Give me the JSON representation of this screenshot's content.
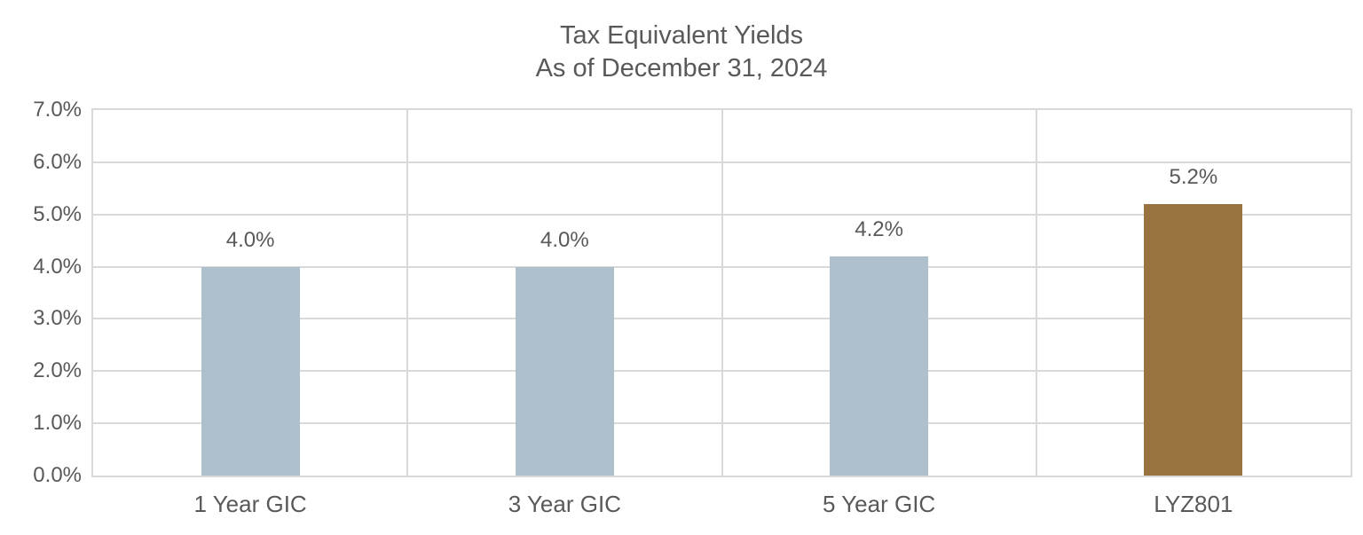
{
  "chart_data": {
    "type": "bar",
    "title": "Tax Equivalent Yields",
    "subtitle": "As of December 31, 2024",
    "categories": [
      "1 Year GIC",
      "3 Year GIC",
      "5 Year GIC",
      "LYZ801"
    ],
    "values": [
      4.0,
      4.0,
      4.2,
      5.2
    ],
    "data_labels": [
      "4.0%",
      "4.0%",
      "4.2%",
      "5.2%"
    ],
    "bar_colors": [
      "#AFC0CD",
      "#AFC0CD",
      "#AFC0CD",
      "#987240"
    ],
    "xlabel": "",
    "ylabel": "",
    "ylim": [
      0,
      7
    ],
    "ytick_step": 1,
    "ytick_labels": [
      "0.0%",
      "1.0%",
      "2.0%",
      "3.0%",
      "4.0%",
      "5.0%",
      "6.0%",
      "7.0%"
    ],
    "grid": "horizontal gridlines at each tick, vertical separators between categories",
    "legend": "none"
  },
  "style": {
    "text_color": "#595959",
    "gridline_color": "#D9D9D9",
    "background_color": "#FFFFFF",
    "bar_color_default": "#AFC0CD",
    "bar_color_highlight": "#987240"
  }
}
